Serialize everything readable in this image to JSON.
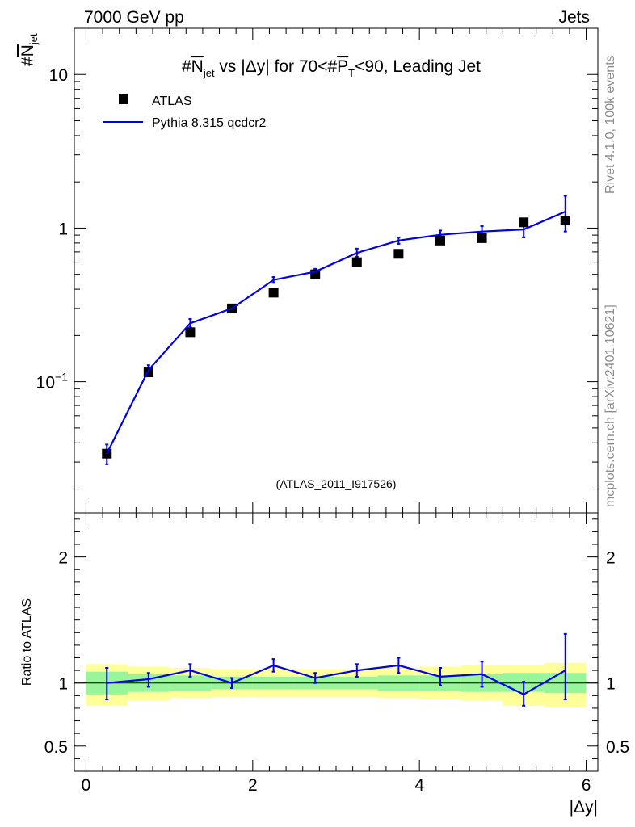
{
  "header": {
    "energy_label": "7000 GeV pp",
    "category_label": "Jets"
  },
  "side_text": {
    "rivet": "Rivet 4.1.0,  100k events",
    "site": "mcplots.cern.ch [arXiv:2401.10621]"
  },
  "colors": {
    "mc_line": "#0000ee",
    "data_marker": "#000000",
    "band_inner": "#99f599",
    "band_outer": "#ffff99",
    "watermark": "#8c8c8c"
  },
  "chart_data": [
    {
      "type": "line",
      "panel": "main",
      "title_parts": {
        "hash": "#",
        "nsym": "N",
        "nsub": "jet",
        "mid": " vs |Δy| for 70<#",
        "psym": "P",
        "psub": "T",
        "tail": "<90, Leading Jet"
      },
      "ylabel_parts": {
        "hash": "#",
        "sym": "N",
        "sub": "jet"
      },
      "xlabel": "|Δy|",
      "yscale": "log",
      "ylim": [
        0.014,
        20
      ],
      "xlim": [
        -0.14,
        6.14
      ],
      "yticks": [
        {
          "value": 0.1,
          "base": "10",
          "exp": "−1"
        },
        {
          "value": 1,
          "base": "1",
          "exp": ""
        },
        {
          "value": 10,
          "base": "10",
          "exp": ""
        }
      ],
      "watermark": "(ATLAS_2011_I917526)",
      "legend_position": "top-left",
      "x": [
        0.25,
        0.75,
        1.25,
        1.75,
        2.25,
        2.75,
        3.25,
        3.75,
        4.25,
        4.75,
        5.25,
        5.75
      ],
      "series": [
        {
          "name": "ATLAS",
          "kind": "markers",
          "values": [
            0.034,
            0.115,
            0.21,
            0.3,
            0.38,
            0.5,
            0.6,
            0.68,
            0.83,
            0.86,
            1.09,
            1.12
          ]
        },
        {
          "name": "Pythia 8.315 qcdcr2",
          "kind": "line",
          "values": [
            0.034,
            0.119,
            0.24,
            0.3,
            0.46,
            0.52,
            0.69,
            0.83,
            0.905,
            0.95,
            0.98,
            1.28
          ],
          "err_low": [
            0.029,
            0.109,
            0.226,
            0.288,
            0.44,
            0.497,
            0.65,
            0.79,
            0.85,
            0.88,
            0.87,
            0.95
          ],
          "err_high": [
            0.039,
            0.128,
            0.256,
            0.312,
            0.48,
            0.543,
            0.735,
            0.87,
            0.965,
            1.03,
            1.1,
            1.62
          ]
        }
      ]
    },
    {
      "type": "line",
      "panel": "ratio",
      "ylabel": "Ratio to ATLAS",
      "xlabel": "|Δy|",
      "ylim": [
        0.3,
        2.35
      ],
      "xlim": [
        -0.14,
        6.14
      ],
      "reference": 1.0,
      "yticks": [
        {
          "value": 0.5,
          "label": "0.5"
        },
        {
          "value": 1,
          "label": "1"
        },
        {
          "value": 2,
          "label": "2"
        }
      ],
      "xticks": [
        {
          "value": 0,
          "label": "0"
        },
        {
          "value": 2,
          "label": "2"
        },
        {
          "value": 4,
          "label": "4"
        },
        {
          "value": 6,
          "label": "6"
        }
      ],
      "bins": [
        [
          0,
          0.5
        ],
        [
          0.5,
          1.0
        ],
        [
          1.0,
          1.5
        ],
        [
          1.5,
          2.0
        ],
        [
          2.0,
          2.5
        ],
        [
          2.5,
          3.0
        ],
        [
          3.0,
          3.5
        ],
        [
          3.5,
          4.0
        ],
        [
          4.0,
          4.5
        ],
        [
          4.5,
          5.0
        ],
        [
          5.0,
          5.5
        ],
        [
          5.5,
          6.0
        ]
      ],
      "band_inner": {
        "low": [
          0.91,
          0.93,
          0.94,
          0.95,
          0.95,
          0.95,
          0.95,
          0.94,
          0.94,
          0.93,
          0.93,
          0.92
        ],
        "high": [
          1.09,
          1.07,
          1.06,
          1.05,
          1.05,
          1.05,
          1.05,
          1.06,
          1.06,
          1.07,
          1.08,
          1.08
        ]
      },
      "band_outer": {
        "low": [
          0.82,
          0.86,
          0.88,
          0.89,
          0.89,
          0.89,
          0.89,
          0.88,
          0.87,
          0.86,
          0.82,
          0.81
        ],
        "high": [
          1.15,
          1.13,
          1.12,
          1.11,
          1.11,
          1.11,
          1.11,
          1.12,
          1.13,
          1.14,
          1.14,
          1.16
        ]
      },
      "x": [
        0.25,
        0.75,
        1.25,
        1.75,
        2.25,
        2.75,
        3.25,
        3.75,
        4.25,
        4.75,
        5.25,
        5.75
      ],
      "series": [
        {
          "name": "Pythia 8.315 qcdcr2",
          "values": [
            1.0,
            1.03,
            1.1,
            1.0,
            1.14,
            1.04,
            1.1,
            1.14,
            1.05,
            1.07,
            0.91,
            1.1
          ],
          "err_low": [
            0.87,
            0.97,
            1.05,
            0.96,
            1.09,
            1.0,
            1.05,
            1.08,
            0.98,
            0.97,
            0.82,
            0.87
          ],
          "err_high": [
            1.12,
            1.08,
            1.15,
            1.04,
            1.19,
            1.08,
            1.15,
            1.2,
            1.12,
            1.17,
            1.01,
            1.39
          ]
        }
      ]
    }
  ]
}
